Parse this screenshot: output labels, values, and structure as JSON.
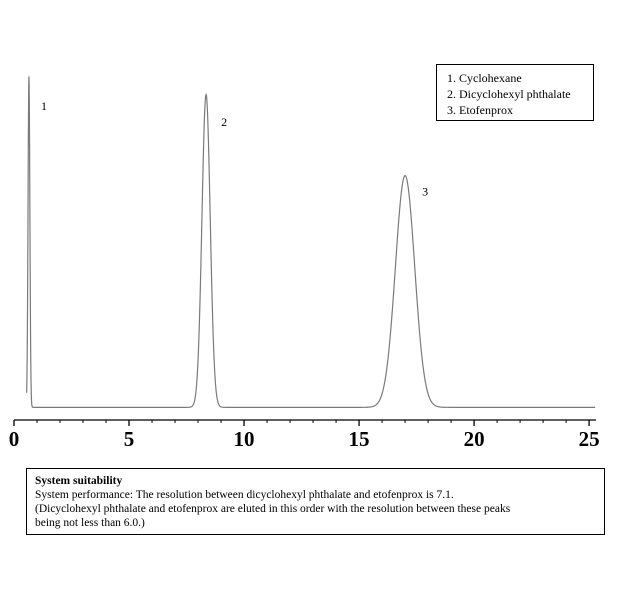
{
  "chart_data": {
    "type": "line",
    "xlabel": "",
    "ylabel": "",
    "xlim": [
      0,
      25.3
    ],
    "ylim": [
      0,
      1.0
    ],
    "x_ticks": [
      0,
      5,
      10,
      15,
      20,
      25
    ],
    "x_tick_labels": [
      "0",
      "5",
      "10",
      "15",
      "20",
      "25"
    ],
    "x_minor_step": 1,
    "grid": false,
    "baseline": 0.005,
    "peaks": [
      {
        "label": "1",
        "retention_time": 0.65,
        "height": 1.0,
        "sigma": 0.04
      },
      {
        "label": "2",
        "retention_time": 8.35,
        "height": 0.945,
        "sigma": 0.18
      },
      {
        "label": "3",
        "retention_time": 17.0,
        "height": 0.7,
        "sigma": 0.42
      }
    ]
  },
  "legend": {
    "placement": "top-right",
    "items": [
      "1. Cyclohexane",
      "2. Dicyclohexyl phthalate",
      "3. Etofenprox"
    ]
  },
  "system_suitability": {
    "title": "System suitability",
    "line1": "System performance: The resolution between dicyclohexyl phthalate and etofenprox is 7.1.",
    "line2": "(Dicyclohexyl phthalate and etofenprox are eluted in this order with the resolution between these peaks",
    "line3": "being not less than 6.0.)"
  }
}
